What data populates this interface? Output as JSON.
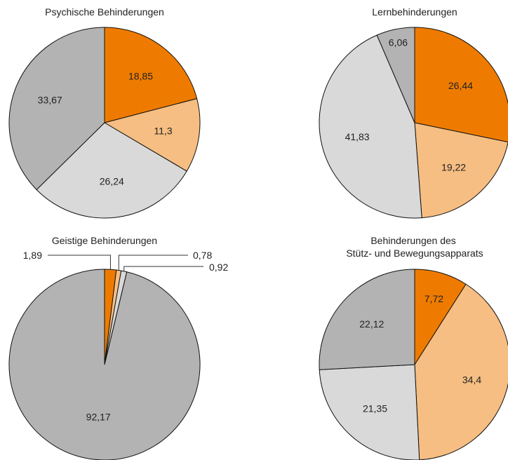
{
  "colors": {
    "c1": "#ee7b00",
    "c2": "#f6be82",
    "c3": "#d9d9d9",
    "c4": "#b3b3b3"
  },
  "chart_data": [
    {
      "type": "pie",
      "title": "Psychische Behinderungen",
      "values": [
        18.85,
        11.3,
        26.24,
        33.67
      ],
      "value_labels": [
        "18,85",
        "11,3",
        "26,24",
        "33,67"
      ]
    },
    {
      "type": "pie",
      "title": "Lernbehinderungen",
      "values": [
        26.44,
        19.22,
        41.83,
        6.06
      ],
      "value_labels": [
        "26,44",
        "19,22",
        "41,83",
        "6,06"
      ]
    },
    {
      "type": "pie",
      "title": "Geistige Behinderungen",
      "values": [
        1.89,
        0.78,
        0.92,
        92.17
      ],
      "value_labels": [
        "1,89",
        "0,78",
        "0,92",
        "92,17"
      ]
    },
    {
      "type": "pie",
      "title": "Behinderungen des Stütz- und Bewegungsapparats",
      "title_lines": [
        "Behinderungen des",
        "Stütz- und Bewegungsapparats"
      ],
      "values": [
        7.72,
        34.4,
        21.35,
        22.12
      ],
      "value_labels": [
        "7,72",
        "34,4",
        "21,35",
        "22,12"
      ]
    }
  ]
}
